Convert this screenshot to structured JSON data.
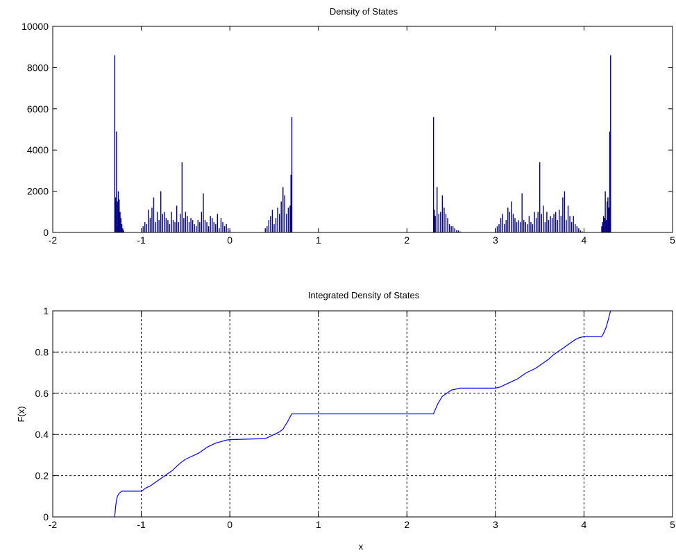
{
  "chart_data": [
    {
      "type": "bar",
      "title": "Density of States",
      "xlabel": "",
      "ylabel": "",
      "xlim": [
        -2,
        5
      ],
      "ylim": [
        0,
        10000
      ],
      "grid": false,
      "bar_color": "#000080",
      "xticks": [
        -2,
        -1,
        0,
        1,
        2,
        3,
        4,
        5
      ],
      "xtick_labels": [
        "-2",
        "-1",
        "0",
        "1",
        "2",
        "3",
        "4",
        "5"
      ],
      "yticks": [
        0,
        2000,
        4000,
        6000,
        8000,
        10000
      ],
      "ytick_labels": [
        "0",
        "2000",
        "4000",
        "6000",
        "8000",
        "10000"
      ],
      "x": [
        -1.3,
        -1.29,
        -1.28,
        -1.27,
        -1.26,
        -1.25,
        -1.24,
        -1.23,
        -1.22,
        -1.21,
        -1.2,
        -0.98,
        -0.96,
        -0.94,
        -0.92,
        -0.9,
        -0.88,
        -0.86,
        -0.84,
        -0.82,
        -0.8,
        -0.78,
        -0.76,
        -0.74,
        -0.72,
        -0.7,
        -0.68,
        -0.66,
        -0.64,
        -0.62,
        -0.6,
        -0.58,
        -0.56,
        -0.54,
        -0.52,
        -0.5,
        -0.48,
        -0.46,
        -0.44,
        -0.42,
        -0.4,
        -0.38,
        -0.36,
        -0.34,
        -0.32,
        -0.3,
        -0.28,
        -0.26,
        -0.24,
        -0.22,
        -0.2,
        -0.18,
        -0.16,
        -0.14,
        -0.12,
        -0.1,
        -0.08,
        -0.06,
        -0.04,
        -0.02,
        0.0,
        0.4,
        0.42,
        0.44,
        0.46,
        0.48,
        0.5,
        0.52,
        0.54,
        0.56,
        0.58,
        0.6,
        0.62,
        0.64,
        0.66,
        0.68,
        0.69,
        0.7,
        2.3,
        2.31,
        2.32,
        2.34,
        2.36,
        2.38,
        2.4,
        2.42,
        2.44,
        2.46,
        2.48,
        2.5,
        2.52,
        2.54,
        2.56,
        2.58,
        2.6,
        3.0,
        3.02,
        3.04,
        3.06,
        3.08,
        3.1,
        3.12,
        3.14,
        3.16,
        3.18,
        3.2,
        3.22,
        3.24,
        3.26,
        3.28,
        3.3,
        3.32,
        3.34,
        3.36,
        3.38,
        3.4,
        3.42,
        3.44,
        3.46,
        3.48,
        3.5,
        3.52,
        3.54,
        3.56,
        3.58,
        3.6,
        3.62,
        3.64,
        3.66,
        3.68,
        3.7,
        3.72,
        3.74,
        3.76,
        3.78,
        3.8,
        3.82,
        3.84,
        3.86,
        3.88,
        3.9,
        3.92,
        3.94,
        3.96,
        3.98,
        4.2,
        4.21,
        4.22,
        4.23,
        4.24,
        4.25,
        4.26,
        4.27,
        4.28,
        4.29,
        4.3
      ],
      "values": [
        8600,
        1700,
        4900,
        1500,
        2000,
        1600,
        1000,
        700,
        400,
        200,
        100,
        300,
        500,
        400,
        1100,
        700,
        1200,
        1700,
        500,
        1000,
        600,
        2000,
        900,
        1000,
        700,
        600,
        400,
        1000,
        600,
        500,
        1300,
        500,
        900,
        3400,
        700,
        1000,
        800,
        500,
        700,
        600,
        400,
        300,
        600,
        500,
        1000,
        1900,
        600,
        500,
        300,
        800,
        700,
        500,
        400,
        900,
        200,
        700,
        500,
        300,
        400,
        200,
        100,
        200,
        300,
        600,
        800,
        1100,
        400,
        700,
        1200,
        900,
        1500,
        2200,
        1800,
        900,
        1200,
        1300,
        2800,
        5600,
        5600,
        1100,
        800,
        2200,
        900,
        1000,
        1800,
        1200,
        900,
        700,
        400,
        300,
        300,
        200,
        100,
        100,
        50,
        200,
        300,
        400,
        700,
        900,
        400,
        600,
        1200,
        1000,
        1500,
        900,
        700,
        500,
        600,
        500,
        1900,
        600,
        500,
        400,
        800,
        500,
        400,
        1000,
        700,
        1000,
        3400,
        900,
        1300,
        500,
        1000,
        600,
        800,
        700,
        900,
        1000,
        600,
        1100,
        800,
        1700,
        2000,
        600,
        1300,
        800,
        500,
        800,
        400,
        300,
        200,
        100,
        50,
        300,
        500,
        800,
        700,
        2000,
        600,
        1500,
        1700,
        1200,
        4900,
        8600
      ]
    },
    {
      "type": "line",
      "title": "Integrated Density of States",
      "xlabel": "x",
      "ylabel": "F(x)",
      "xlim": [
        -2,
        5
      ],
      "ylim": [
        0,
        1
      ],
      "grid": true,
      "line_color": "#0000ff",
      "xticks": [
        -2,
        -1,
        0,
        1,
        2,
        3,
        4,
        5
      ],
      "xtick_labels": [
        "-2",
        "-1",
        "0",
        "1",
        "2",
        "3",
        "4",
        "5"
      ],
      "yticks": [
        0,
        0.2,
        0.4,
        0.6,
        0.8,
        1
      ],
      "ytick_labels": [
        "0",
        "0.2",
        "0.4",
        "0.6",
        "0.8",
        "1"
      ],
      "x": [
        -1.3,
        -1.29,
        -1.28,
        -1.27,
        -1.25,
        -1.22,
        -1.2,
        -1.0,
        -0.98,
        -0.95,
        -0.9,
        -0.85,
        -0.8,
        -0.75,
        -0.7,
        -0.65,
        -0.6,
        -0.55,
        -0.5,
        -0.45,
        -0.4,
        -0.35,
        -0.3,
        -0.25,
        -0.2,
        -0.15,
        -0.1,
        -0.05,
        0.0,
        0.4,
        0.45,
        0.5,
        0.55,
        0.6,
        0.62,
        0.65,
        0.68,
        0.7,
        2.3,
        2.32,
        2.35,
        2.4,
        2.45,
        2.5,
        2.55,
        2.6,
        3.0,
        3.05,
        3.1,
        3.15,
        3.2,
        3.25,
        3.3,
        3.35,
        3.4,
        3.45,
        3.5,
        3.55,
        3.6,
        3.65,
        3.7,
        3.75,
        3.8,
        3.85,
        3.9,
        3.95,
        4.0,
        4.2,
        4.22,
        4.25,
        4.27,
        4.3
      ],
      "y": [
        0.0,
        0.05,
        0.08,
        0.1,
        0.115,
        0.125,
        0.125,
        0.125,
        0.13,
        0.14,
        0.15,
        0.165,
        0.18,
        0.195,
        0.21,
        0.225,
        0.245,
        0.265,
        0.28,
        0.29,
        0.3,
        0.31,
        0.325,
        0.34,
        0.35,
        0.36,
        0.365,
        0.372,
        0.375,
        0.38,
        0.39,
        0.4,
        0.41,
        0.425,
        0.44,
        0.46,
        0.485,
        0.5,
        0.5,
        0.52,
        0.55,
        0.585,
        0.6,
        0.615,
        0.62,
        0.625,
        0.625,
        0.63,
        0.64,
        0.65,
        0.66,
        0.67,
        0.685,
        0.7,
        0.71,
        0.72,
        0.735,
        0.75,
        0.765,
        0.785,
        0.8,
        0.815,
        0.83,
        0.845,
        0.86,
        0.87,
        0.875,
        0.875,
        0.89,
        0.92,
        0.95,
        1.0
      ]
    }
  ]
}
